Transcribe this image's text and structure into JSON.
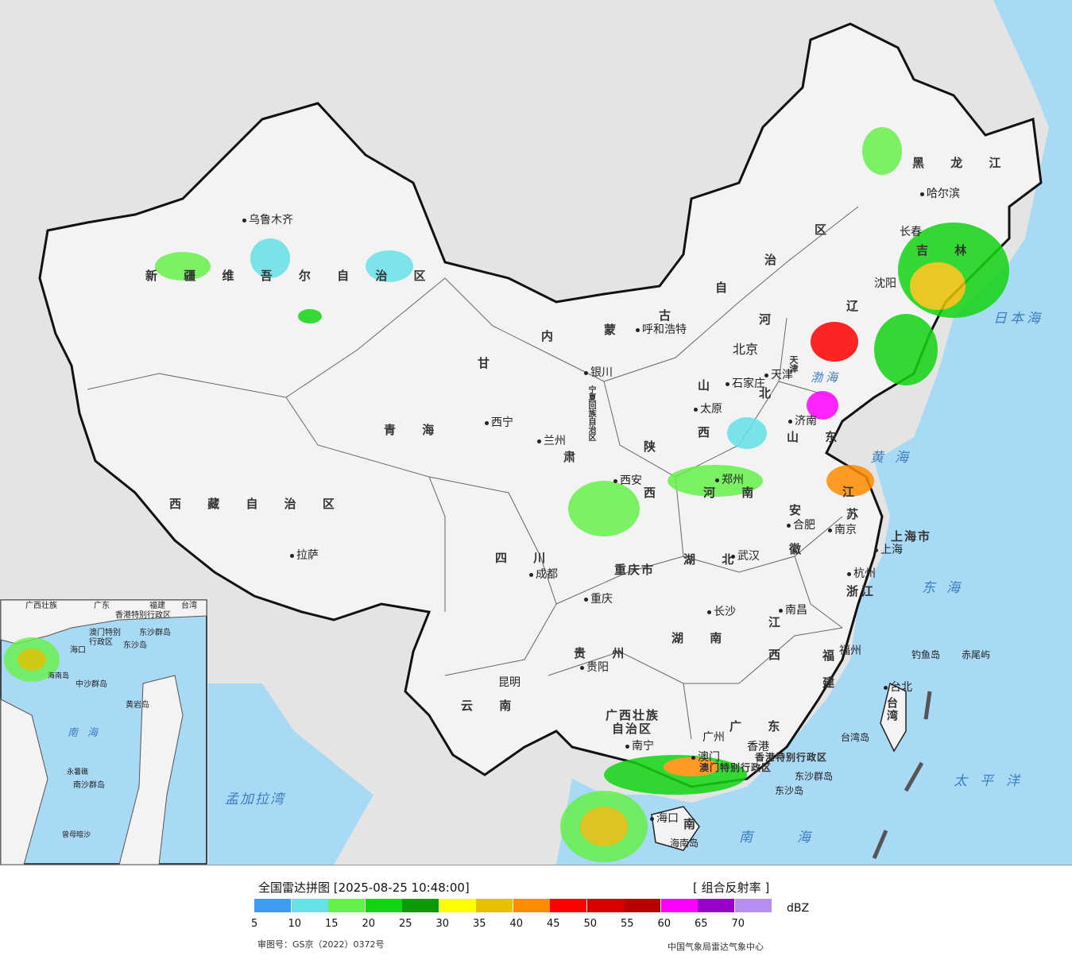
{
  "map": {
    "provinces": [
      {
        "id": "xinjiang",
        "text": "新 疆 维 吾 尔 自 治 区"
      },
      {
        "id": "tibet",
        "text": "西 藏 自 治 区"
      },
      {
        "id": "qinghai",
        "text": "青   海"
      },
      {
        "id": "gansu",
        "text": "甘"
      },
      {
        "id": "gansu2",
        "text": "肃"
      },
      {
        "id": "neimenggu1",
        "text": "内"
      },
      {
        "id": "neimenggu2",
        "text": "蒙"
      },
      {
        "id": "neimenggu3",
        "text": "古"
      },
      {
        "id": "neimenggu4",
        "text": "自"
      },
      {
        "id": "neimenggu5",
        "text": "治"
      },
      {
        "id": "neimenggu6",
        "text": "区"
      },
      {
        "id": "heilongjiang",
        "text": "黑 龙 江"
      },
      {
        "id": "jilin",
        "text": "吉 林"
      },
      {
        "id": "liaoning",
        "text": "辽"
      },
      {
        "id": "hebei",
        "text": "河"
      },
      {
        "id": "hebei2",
        "text": "北"
      },
      {
        "id": "shanxi",
        "text": "山"
      },
      {
        "id": "shanxi2",
        "text": "西"
      },
      {
        "id": "shandong",
        "text": "山 东"
      },
      {
        "id": "henan",
        "text": "河 南"
      },
      {
        "id": "shaanxi",
        "text": "陕"
      },
      {
        "id": "shaanxi2",
        "text": "西"
      },
      {
        "id": "jiangsu",
        "text": "江"
      },
      {
        "id": "jiangsu2",
        "text": "苏"
      },
      {
        "id": "anhui",
        "text": "安"
      },
      {
        "id": "anhui2",
        "text": "徽"
      },
      {
        "id": "sichuan",
        "text": "四 川"
      },
      {
        "id": "chongqing",
        "text": "重庆市"
      },
      {
        "id": "hubei",
        "text": "湖 北"
      },
      {
        "id": "hunan",
        "text": "湖 南"
      },
      {
        "id": "jiangxi",
        "text": "江"
      },
      {
        "id": "jiangxi2",
        "text": "西"
      },
      {
        "id": "zhejiang",
        "text": "浙江"
      },
      {
        "id": "fujian",
        "text": "福"
      },
      {
        "id": "fujian2",
        "text": "建"
      },
      {
        "id": "guizhou",
        "text": "贵 州"
      },
      {
        "id": "yunnan",
        "text": "云 南"
      },
      {
        "id": "guangxi",
        "text": "广西壮族"
      },
      {
        "id": "guangxi2",
        "text": "自治区"
      },
      {
        "id": "guangdong",
        "text": "广 东"
      },
      {
        "id": "hainan",
        "text": "南"
      },
      {
        "id": "taiwan",
        "text": "台湾"
      },
      {
        "id": "shanghai",
        "text": "上海市"
      },
      {
        "id": "tianjin",
        "text": "天津"
      },
      {
        "id": "ningxia",
        "text": "宁夏回族自治区"
      },
      {
        "id": "hk",
        "text": "香港特别行政区"
      },
      {
        "id": "macau",
        "text": "澳门特别行政区"
      }
    ],
    "cities": [
      "乌鲁木齐",
      "拉萨",
      "西宁",
      "兰州",
      "银川",
      "呼和浩特",
      "北京",
      "天津",
      "石家庄",
      "太原",
      "济南",
      "郑州",
      "西安",
      "成都",
      "重庆",
      "武汉",
      "合肥",
      "南京",
      "上海",
      "杭州",
      "南昌",
      "长沙",
      "贵阳",
      "昆明",
      "南宁",
      "广州",
      "香港",
      "澳门",
      "海口",
      "福州",
      "台北",
      "哈尔滨",
      "长春",
      "沈阳"
    ],
    "seas": {
      "japan_sea": "日本海",
      "bohai": "渤海",
      "yellow_sea": "黄海",
      "east_sea": "东海",
      "pacific": "太平洋",
      "south_sea": "南海",
      "bengal": "孟加拉湾",
      "south_sea_inset": "南海"
    },
    "islands": {
      "diaoyu": "钓鱼岛",
      "chiwei": "赤尾屿",
      "dongsha_islands": "东沙群岛",
      "dongsha_island": "东沙岛",
      "taiwan_island": "台湾岛",
      "hainan_island": "海南岛"
    },
    "inset": {
      "labels": [
        "广西壮族",
        "广东",
        "福建",
        "台湾",
        "香港特别行政区",
        "澳门特别",
        "行政区",
        "东沙群岛",
        "东沙岛",
        "海口",
        "海南岛",
        "中沙群岛",
        "黄岩岛",
        "南沙群岛",
        "永暑礁",
        "曾母暗沙",
        "南海"
      ]
    }
  },
  "legend": {
    "title": "全国雷达拼图 [2025-08-25 10:48:00]",
    "product": "[ 组合反射率 ]",
    "unit": "dBZ",
    "ticks": [
      "5",
      "10",
      "15",
      "20",
      "25",
      "30",
      "35",
      "40",
      "45",
      "50",
      "55",
      "60",
      "65",
      "70"
    ],
    "colors": [
      "#3d9cf0",
      "#66e1e8",
      "#66f04a",
      "#13d413",
      "#0a9a0a",
      "#ffff00",
      "#e6c100",
      "#ff8c00",
      "#ff0000",
      "#d80000",
      "#b90000",
      "#ff00ff",
      "#9800c8",
      "#b58ef0"
    ],
    "approval": "审图号：GS京（2022）0372号",
    "source": "中国气象局雷达气象中心"
  }
}
